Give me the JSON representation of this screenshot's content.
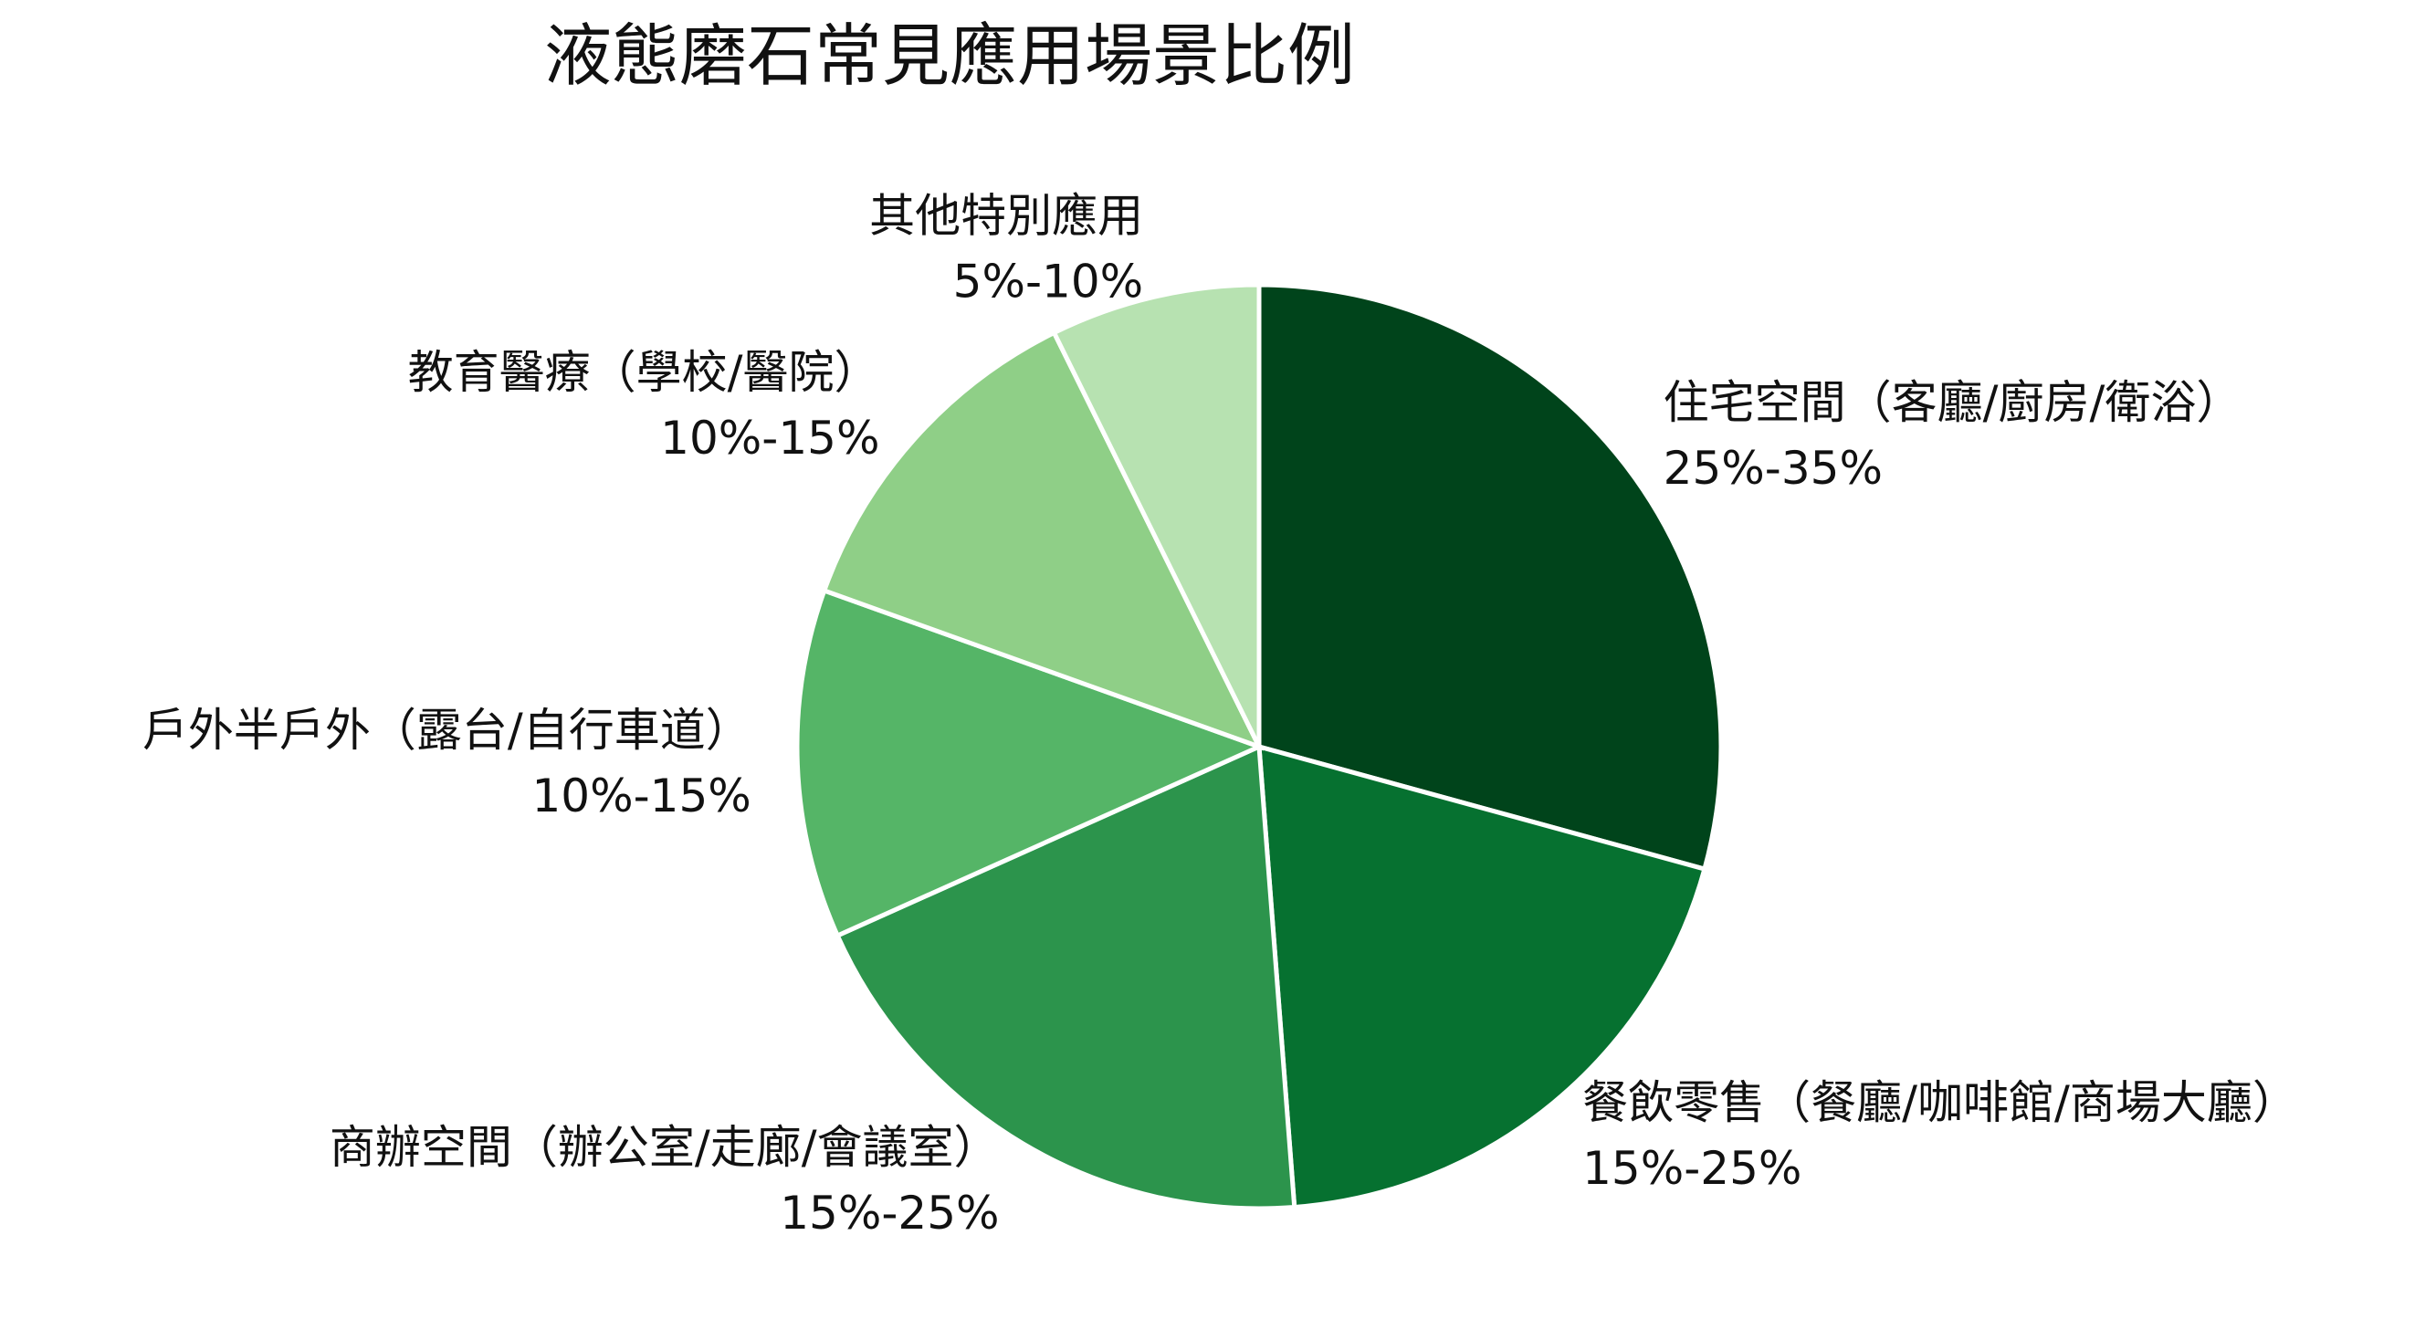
{
  "chart_data": {
    "type": "pie",
    "title": "液態磨石常見應用場景比例",
    "categories": [
      "住宅空間（客廳/廚房/衛浴）",
      "餐飲零售（餐廳/咖啡館/商場大廳）",
      "商辦空間（辦公室/走廊/會議室）",
      "戶外半戶外（露台/自行車道）",
      "教育醫療（學校/醫院）",
      "其他特別應用"
    ],
    "values": [
      30,
      20,
      20,
      12.5,
      12.5,
      7.5
    ],
    "value_labels": [
      "25%-35%",
      "15%-25%",
      "15%-25%",
      "10%-15%",
      "10%-15%",
      "5%-10%"
    ],
    "colors": [
      "#00441b",
      "#067130",
      "#2c944c",
      "#55b567",
      "#8fcf87",
      "#b7e2b1"
    ]
  }
}
